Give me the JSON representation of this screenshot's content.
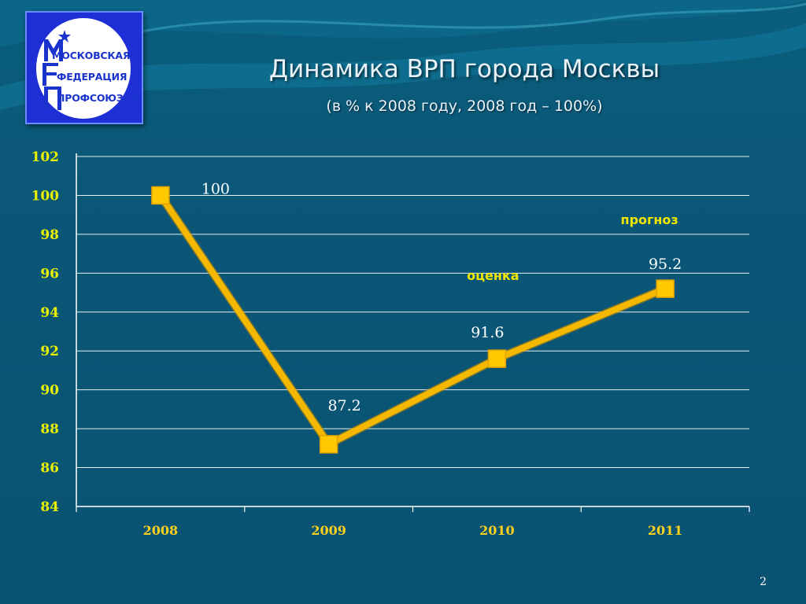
{
  "slide": {
    "title": "Динамика ВРП города Москвы",
    "subtitle": "(в % к 2008 году, 2008 год – 100%)",
    "page_number": "2"
  },
  "logo": {
    "lines": [
      "МОСКОВСКАЯ",
      "ФЕДЕРАЦИЯ",
      "ПРОФСОЮЗОВ"
    ],
    "icon": "star-icon"
  },
  "colors": {
    "background": "#0b5777",
    "line": "#f5b800",
    "marker": "#ffc800",
    "tick_y": "#e8f000",
    "tick_x": "#ffd21a",
    "annotation": "#f2e600"
  },
  "chart_data": {
    "type": "line",
    "title": "",
    "xlabel": "",
    "ylabel": "",
    "categories": [
      "2008",
      "2009",
      "2010",
      "2011"
    ],
    "series": [
      {
        "values": [
          100,
          87.2,
          91.6,
          95.2
        ]
      }
    ],
    "data_labels": [
      "100",
      "87.2",
      "91.6",
      "95.2"
    ],
    "yticks": [
      "84",
      "86",
      "88",
      "90",
      "92",
      "94",
      "96",
      "98",
      "100",
      "102"
    ],
    "ylim": [
      84,
      102
    ],
    "grid": true,
    "legend": "none",
    "annotations": [
      {
        "text": "оценка",
        "category": "2010"
      },
      {
        "text": "прогноз",
        "category": "2011"
      }
    ]
  }
}
